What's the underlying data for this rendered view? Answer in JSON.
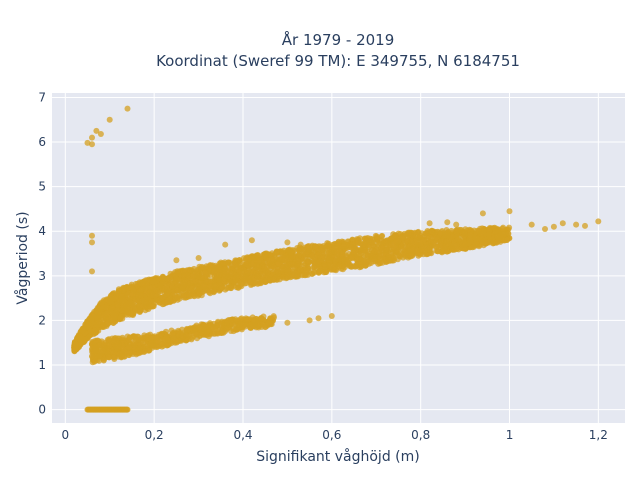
{
  "chart_data": {
    "type": "scatter",
    "title_line1": "År 1979 - 2019",
    "title_line2": "Koordinat (Sweref 99 TM): E 349755, N 6184751",
    "xlabel": "Signifikant våghöjd (m)",
    "ylabel": "Vågperiod (s)",
    "xlim": [
      -0.03,
      1.26
    ],
    "ylim": [
      -0.3,
      7.1
    ],
    "x_ticks": [
      0,
      0.2,
      0.4,
      0.6,
      0.8,
      1,
      1.2
    ],
    "x_tick_labels": [
      "0",
      "0,2",
      "0,4",
      "0,6",
      "0,8",
      "1",
      "1,2"
    ],
    "y_ticks": [
      0,
      1,
      2,
      3,
      4,
      5,
      6,
      7
    ],
    "y_tick_labels": [
      "0",
      "1",
      "2",
      "3",
      "4",
      "5",
      "6",
      "7"
    ],
    "grid": true,
    "marker_color": "#d4a020",
    "plot_background": "#e5e8f1",
    "bands": [
      {
        "x": [
          0.02,
          0.05,
          0.08,
          0.12,
          0.16,
          0.2,
          0.25,
          0.3,
          0.35,
          0.4,
          0.45,
          0.5,
          0.6,
          0.7,
          0.8,
          0.9,
          1.0
        ],
        "y_low": [
          1.3,
          1.6,
          1.8,
          2.0,
          2.15,
          2.3,
          2.45,
          2.55,
          2.65,
          2.75,
          2.85,
          2.95,
          3.1,
          3.25,
          3.45,
          3.6,
          3.8
        ],
        "y_high": [
          1.5,
          2.0,
          2.4,
          2.7,
          2.85,
          2.95,
          3.1,
          3.2,
          3.3,
          3.4,
          3.5,
          3.6,
          3.75,
          3.9,
          4.0,
          4.05,
          4.1
        ],
        "count": 3200
      },
      {
        "x": [
          0.06,
          0.1,
          0.15,
          0.2,
          0.25,
          0.3,
          0.35,
          0.4,
          0.45,
          0.47
        ],
        "y_low": [
          1.05,
          1.1,
          1.2,
          1.35,
          1.5,
          1.6,
          1.7,
          1.8,
          1.85,
          1.9
        ],
        "y_high": [
          1.55,
          1.6,
          1.65,
          1.7,
          1.8,
          1.9,
          2.0,
          2.05,
          2.1,
          2.1
        ],
        "count": 700
      }
    ],
    "outliers": [
      [
        0.05,
        5.98
      ],
      [
        0.06,
        5.95
      ],
      [
        0.06,
        6.1
      ],
      [
        0.07,
        6.25
      ],
      [
        0.08,
        6.18
      ],
      [
        0.1,
        6.5
      ],
      [
        0.14,
        6.75
      ],
      [
        0.06,
        3.9
      ],
      [
        0.06,
        3.75
      ],
      [
        0.06,
        3.1
      ],
      [
        0.55,
        2.0
      ],
      [
        0.57,
        2.05
      ],
      [
        0.5,
        1.95
      ],
      [
        0.45,
        1.85
      ],
      [
        0.6,
        2.1
      ],
      [
        1.0,
        4.45
      ],
      [
        0.94,
        4.4
      ],
      [
        0.98,
        3.9
      ],
      [
        1.05,
        4.15
      ],
      [
        1.08,
        4.05
      ],
      [
        1.1,
        4.1
      ],
      [
        1.12,
        4.18
      ],
      [
        1.15,
        4.15
      ],
      [
        1.17,
        4.12
      ],
      [
        1.2,
        4.22
      ],
      [
        0.82,
        4.18
      ],
      [
        0.86,
        4.2
      ],
      [
        0.88,
        4.15
      ],
      [
        0.9,
        3.7
      ],
      [
        0.95,
        3.75
      ],
      [
        0.25,
        3.35
      ],
      [
        0.3,
        3.4
      ],
      [
        0.36,
        3.7
      ],
      [
        0.42,
        3.8
      ],
      [
        0.5,
        3.75
      ],
      [
        0.53,
        3.7
      ],
      [
        0.88,
        3.6
      ],
      [
        0.92,
        3.65
      ],
      [
        0.11,
        2.5
      ],
      [
        0.08,
        1.3
      ]
    ],
    "zero_row": {
      "y": 0,
      "x_min": 0.05,
      "x_max": 0.14,
      "count": 60
    }
  }
}
